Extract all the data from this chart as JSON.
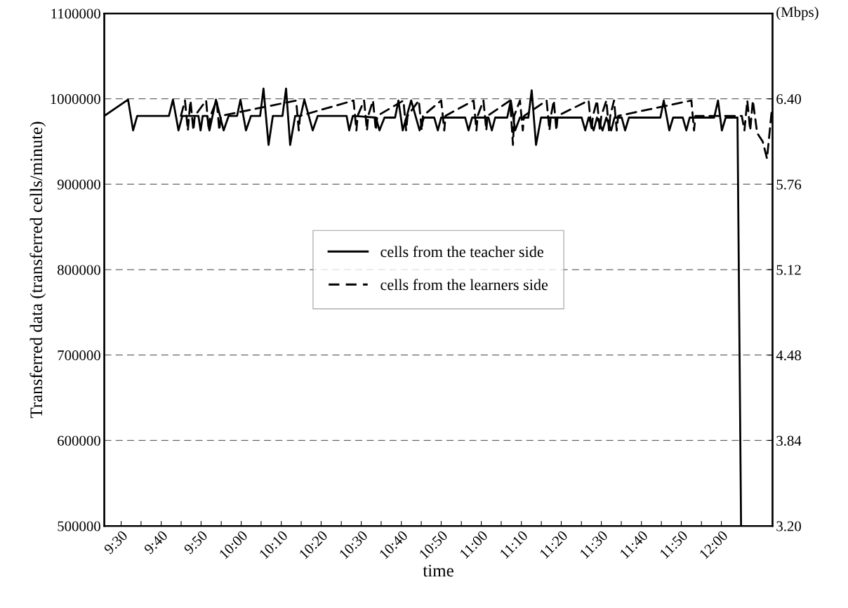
{
  "chart_data": {
    "type": "line",
    "xlabel": "time",
    "ylabel": "Transferred data (transferred cells/minute)",
    "y2label": "(Mbps)",
    "xlim": [
      9.43,
      12.213
    ],
    "xticks": [
      {
        "value": 9.5,
        "label": "9:30"
      },
      {
        "value": 9.583,
        "label": null
      },
      {
        "value": 9.667,
        "label": "9:40"
      },
      {
        "value": 9.75,
        "label": null
      },
      {
        "value": 9.833,
        "label": "9:50"
      },
      {
        "value": 9.917,
        "label": null
      },
      {
        "value": 10.0,
        "label": "10:00"
      },
      {
        "value": 10.083,
        "label": null
      },
      {
        "value": 10.167,
        "label": "10:10"
      },
      {
        "value": 10.25,
        "label": null
      },
      {
        "value": 10.333,
        "label": "10:20"
      },
      {
        "value": 10.417,
        "label": null
      },
      {
        "value": 10.5,
        "label": "10:30"
      },
      {
        "value": 10.583,
        "label": null
      },
      {
        "value": 10.667,
        "label": "10:40"
      },
      {
        "value": 10.75,
        "label": null
      },
      {
        "value": 10.833,
        "label": "10:50"
      },
      {
        "value": 10.917,
        "label": null
      },
      {
        "value": 11.0,
        "label": "11:00"
      },
      {
        "value": 11.083,
        "label": null
      },
      {
        "value": 11.167,
        "label": "11:10"
      },
      {
        "value": 11.25,
        "label": null
      },
      {
        "value": 11.333,
        "label": "11:20"
      },
      {
        "value": 11.417,
        "label": null
      },
      {
        "value": 11.5,
        "label": "11:30"
      },
      {
        "value": 11.583,
        "label": null
      },
      {
        "value": 11.667,
        "label": "11:40"
      },
      {
        "value": 11.75,
        "label": null
      },
      {
        "value": 11.833,
        "label": "11:50"
      },
      {
        "value": 11.917,
        "label": null
      },
      {
        "value": 12.0,
        "label": "12:00"
      }
    ],
    "ylim": [
      500000,
      1100000
    ],
    "yticks": [
      500000,
      600000,
      700000,
      800000,
      900000,
      1000000,
      1100000
    ],
    "y2lim": [
      3.2,
      7.04
    ],
    "y2ticks": [
      {
        "value": 3.2,
        "label": "3.20"
      },
      3.84,
      4.48,
      5.12,
      5.76,
      {
        "value": 6.4,
        "label": "6.40"
      }
    ],
    "grid": "y",
    "legend": "center",
    "series": [
      {
        "name": "cells from the teacher side",
        "color": "#000000",
        "line_style": "solid",
        "x": [
          9.43,
          9.529,
          9.55,
          9.567,
          9.699,
          9.716,
          9.739,
          9.755,
          9.822,
          9.831,
          9.84,
          9.859,
          9.868,
          9.895,
          9.927,
          9.948,
          9.983,
          9.997,
          10.02,
          10.041,
          10.079,
          10.093,
          10.114,
          10.132,
          10.172,
          10.187,
          10.204,
          10.225,
          10.248,
          10.263,
          10.298,
          10.319,
          10.439,
          10.45,
          10.465,
          10.561,
          10.576,
          10.597,
          10.641,
          10.655,
          10.673,
          10.708,
          10.743,
          10.761,
          10.804,
          10.819,
          10.833,
          10.933,
          10.947,
          10.962,
          11.03,
          11.044,
          11.058,
          11.108,
          11.123,
          11.141,
          11.161,
          11.196,
          11.21,
          11.228,
          11.249,
          11.418,
          11.433,
          11.447,
          11.468,
          11.482,
          11.505,
          11.521,
          11.541,
          11.555,
          11.585,
          11.599,
          11.615,
          11.746,
          11.76,
          11.783,
          11.799,
          11.839,
          11.854,
          11.868,
          11.97,
          11.986,
          12.002,
          12.018,
          12.067,
          12.082
        ],
        "values": [
          980000,
          999000,
          963000,
          980000,
          980000,
          999000,
          963000,
          980000,
          980000,
          963000,
          980000,
          980000,
          963000,
          999000,
          963000,
          980000,
          980000,
          999000,
          963000,
          980000,
          980000,
          1012000,
          946000,
          980000,
          980000,
          1012000,
          946000,
          980000,
          980000,
          999000,
          963000,
          980000,
          980000,
          963000,
          980000,
          978000,
          963000,
          978000,
          978000,
          998000,
          963000,
          998000,
          963000,
          978000,
          978000,
          963000,
          978000,
          978000,
          963000,
          978000,
          978000,
          963000,
          978000,
          978000,
          998000,
          963000,
          978000,
          978000,
          1010000,
          946000,
          978000,
          978000,
          963000,
          978000,
          963000,
          978000,
          963000,
          978000,
          963000,
          978000,
          978000,
          963000,
          978000,
          978000,
          998000,
          963000,
          978000,
          978000,
          963000,
          978000,
          978000,
          998000,
          963000,
          978000,
          978000,
          500000
        ]
      },
      {
        "name": "cells from the learners side",
        "color": "#000000",
        "line_style": "dashed",
        "x": [
          9.749,
          9.766,
          9.778,
          9.783,
          9.789,
          9.801,
          9.807,
          9.854,
          9.865,
          9.872,
          9.898,
          9.909,
          9.916,
          10.229,
          10.24,
          10.245,
          10.468,
          10.48,
          10.485,
          10.512,
          10.524,
          10.529,
          10.549,
          10.561,
          10.567,
          10.676,
          10.687,
          10.693,
          10.74,
          10.752,
          10.757,
          10.833,
          10.846,
          10.851,
          10.968,
          10.98,
          10.985,
          11.009,
          11.021,
          11.026,
          11.12,
          11.132,
          11.137,
          11.161,
          11.173,
          11.178,
          11.272,
          11.284,
          11.29,
          11.302,
          11.313,
          11.318,
          11.447,
          11.459,
          11.465,
          11.482,
          11.494,
          11.5,
          11.521,
          11.532,
          11.537,
          11.553,
          11.564,
          11.57,
          11.875,
          11.886,
          11.892,
          12.085,
          12.096,
          12.108,
          12.12,
          12.131,
          12.149,
          12.172,
          12.19,
          12.211
        ],
        "values": [
          980000,
          998000,
          963000,
          980000,
          998000,
          963000,
          980000,
          998000,
          963000,
          980000,
          998000,
          963000,
          980000,
          998000,
          963000,
          980000,
          998000,
          963000,
          980000,
          998000,
          963000,
          980000,
          998000,
          963000,
          980000,
          998000,
          963000,
          980000,
          998000,
          963000,
          980000,
          998000,
          963000,
          980000,
          998000,
          963000,
          980000,
          998000,
          963000,
          980000,
          998000,
          946000,
          980000,
          998000,
          963000,
          980000,
          998000,
          963000,
          980000,
          998000,
          963000,
          980000,
          998000,
          963000,
          980000,
          998000,
          963000,
          980000,
          998000,
          963000,
          980000,
          998000,
          963000,
          980000,
          998000,
          963000,
          980000,
          980000,
          963000,
          998000,
          963000,
          998000,
          960000,
          950000,
          930000,
          990000
        ]
      }
    ]
  }
}
